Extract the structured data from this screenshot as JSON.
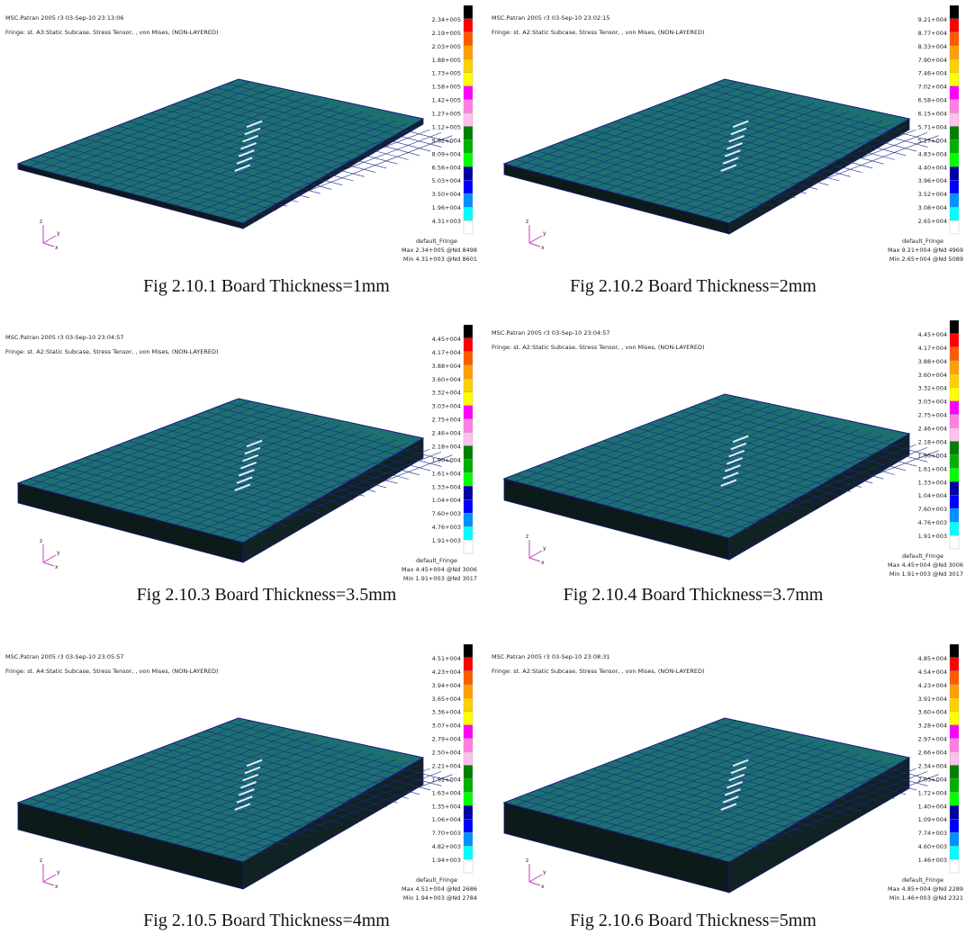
{
  "panels": [
    {
      "header": {
        "title": "MSC.Patran 2005 r3 03-Sep-10 23:13:06",
        "fringe": "Fringe: st. A3:Static Subcase, Stress Tensor, , von Mises, (NON-LAYERED)"
      },
      "legend": [
        "2.34+005",
        "2.19+005",
        "2.03+005",
        "1.88+005",
        "1.73+005",
        "1.58+005",
        "1.42+005",
        "1.27+005",
        "1.12+005",
        "9.62+004",
        "8.09+004",
        "6.56+004",
        "5.03+004",
        "3.50+004",
        "1.96+004",
        "4.31+003"
      ],
      "footer": {
        "name": "default_Fringe",
        "max": "Max 2.34+005 @Nd 8498",
        "min": "Min 4.31+003 @Nd 8601"
      },
      "axes": {
        "z": "z",
        "y": "y",
        "x": "x"
      },
      "caption": "Fig 2.10.1 Board Thickness=1mm"
    },
    {
      "header": {
        "title": "MSC.Patran 2005 r3 03-Sep-10 23:02:15",
        "fringe": "Fringe: st. A2:Static Subcase, Stress Tensor, , von Mises, (NON-LAYERED)"
      },
      "legend": [
        "9.21+004",
        "8.77+004",
        "8.33+004",
        "7.90+004",
        "7.46+004",
        "7.02+004",
        "6.58+004",
        "6.15+004",
        "5.71+004",
        "5.27+004",
        "4.83+004",
        "4.40+004",
        "3.96+004",
        "3.52+004",
        "3.08+004",
        "2.65+004"
      ],
      "footer": {
        "name": "default_Fringe",
        "max": "Max 9.21+004 @Nd 4969",
        "min": "Min 2.65+004 @Nd 5089"
      },
      "axes": {
        "z": "z",
        "y": "y",
        "x": "x"
      },
      "caption": "Fig 2.10.2 Board Thickness=2mm"
    },
    {
      "header": {
        "title": "MSC.Patran 2005 r3 03-Sep-10 23:04:57",
        "fringe": "Fringe: st. A2:Static Subcase, Stress Tensor, , von Mises, (NON-LAYERED)"
      },
      "legend": [
        "4.45+004",
        "4.17+004",
        "3.88+004",
        "3.60+004",
        "3.32+004",
        "3.03+004",
        "2.75+004",
        "2.46+004",
        "2.18+004",
        "1.90+004",
        "1.61+004",
        "1.33+004",
        "1.04+004",
        "7.60+003",
        "4.76+003",
        "1.91+003"
      ],
      "footer": {
        "name": "default_Fringe",
        "max": "Max 4.45+004 @Nd 3006",
        "min": "Min 1.91+003 @Nd 3017"
      },
      "axes": {
        "z": "z",
        "y": "y",
        "x": "x"
      },
      "caption": "Fig 2.10.3 Board Thickness=3.5mm"
    },
    {
      "header": {
        "title": "MSC.Patran 2005 r3 03-Sep-10 23:04:57",
        "fringe": "Fringe: st. A2:Static Subcase, Stress Tensor, , von Mises, (NON-LAYERED)"
      },
      "legend": [
        "4.45+004",
        "4.17+004",
        "3.88+004",
        "3.60+004",
        "3.32+004",
        "3.03+004",
        "2.75+004",
        "2.46+004",
        "2.18+004",
        "1.90+004",
        "1.61+004",
        "1.33+004",
        "1.04+004",
        "7.60+003",
        "4.76+003",
        "1.91+003"
      ],
      "footer": {
        "name": "default_Fringe",
        "max": "Max 4.45+004 @Nd 3006",
        "min": "Min 1.91+003 @Nd 3017"
      },
      "axes": {
        "z": "z",
        "y": "y",
        "x": "x"
      },
      "caption": "Fig 2.10.4 Board Thickness=3.7mm"
    },
    {
      "header": {
        "title": "MSC.Patran 2005 r3 03-Sep-10 23:05:57",
        "fringe": "Fringe: st. A4:Static Subcase, Stress Tensor, , von Mises, (NON-LAYERED)"
      },
      "legend": [
        "4.51+004",
        "4.23+004",
        "3.94+004",
        "3.65+004",
        "3.36+004",
        "3.07+004",
        "2.79+004",
        "2.50+004",
        "2.21+004",
        "1.92+004",
        "1.63+004",
        "1.35+004",
        "1.06+004",
        "7.70+003",
        "4.82+003",
        "1.94+003"
      ],
      "footer": {
        "name": "default_Fringe",
        "max": "Max 4.51+004 @Nd 2686",
        "min": "Min 1.94+003 @Nd 2784"
      },
      "axes": {
        "z": "z",
        "y": "y",
        "x": "x"
      },
      "caption": "Fig 2.10.5 Board Thickness=4mm"
    },
    {
      "header": {
        "title": "MSC.Patran 2005 r3 03-Sep-10 23:08:31",
        "fringe": "Fringe: st. A2:Static Subcase, Stress Tensor, , von Mises, (NON-LAYERED)"
      },
      "legend": [
        "4.85+004",
        "4.54+004",
        "4.23+004",
        "3.91+004",
        "3.60+004",
        "3.28+004",
        "2.97+004",
        "2.66+004",
        "2.34+004",
        "2.03+004",
        "1.72+004",
        "1.40+004",
        "1.09+004",
        "7.74+003",
        "4.60+003",
        "1.46+003"
      ],
      "footer": {
        "name": "default_Fringe",
        "max": "Max 4.85+004 @Nd 2289",
        "min": "Min 1.46+003 @Nd 2321"
      },
      "axes": {
        "z": "z",
        "y": "y",
        "x": "x"
      },
      "caption": "Fig 2.10.6 Board Thickness=5mm"
    }
  ]
}
